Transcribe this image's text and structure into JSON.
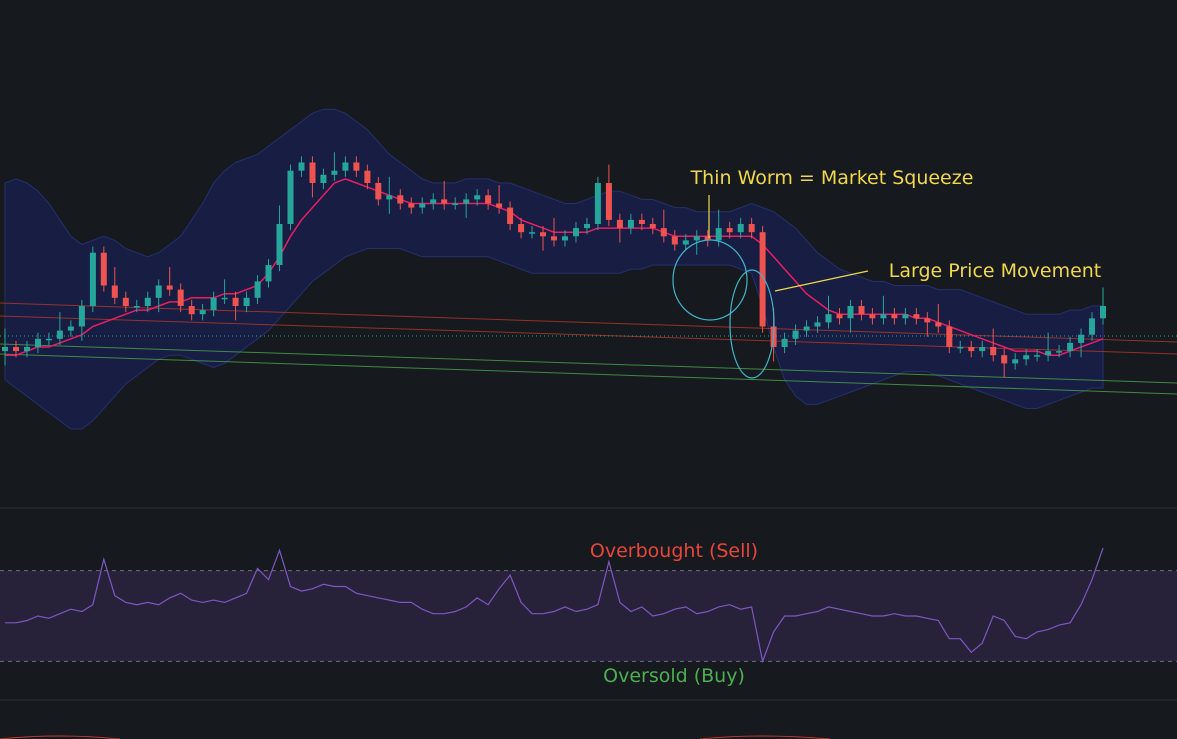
{
  "colors": {
    "background": "#161a1e",
    "bull": "#26a69a",
    "bear": "#ef5350",
    "ma": "#e91e63",
    "bollinger_fill": "#1b1f5c",
    "trend_upper": "#c0392b",
    "trend_lower": "#4caf50",
    "rsi_line": "#7e57c2",
    "rsi_band": "#2a2340",
    "annotation_text": "#f0d84a",
    "annotation_circle": "#3fb6c9",
    "overbought_text": "#e8453c",
    "oversold_text": "#4caf50",
    "separator": "#2c3038"
  },
  "annotations": {
    "squeeze": "Thin Worm = Market Squeeze",
    "movement": "Large Price Movement",
    "overbought": "Overbought (Sell)",
    "oversold": "Oversold (Buy)"
  },
  "chart_data": [
    {
      "type": "candlestick",
      "title": "",
      "overlays": [
        "bollinger-bands",
        "moving-average",
        "trend-lines"
      ],
      "grid": false,
      "ylim": [
        0,
        100
      ],
      "close": [
        70,
        69,
        70,
        72,
        72,
        74,
        75,
        80,
        93,
        85,
        82,
        80,
        80,
        82,
        85,
        84,
        80,
        78,
        79,
        82,
        82,
        80,
        82,
        86,
        90,
        100,
        113,
        115,
        110,
        112,
        113,
        115,
        113,
        110,
        106,
        107,
        105,
        104,
        105,
        106,
        105,
        105,
        106,
        107,
        105,
        104,
        100,
        98,
        98,
        97,
        96,
        97,
        99,
        100,
        110,
        101,
        99,
        101,
        100,
        99,
        97,
        95,
        96,
        97,
        96,
        99,
        98,
        100,
        98,
        75,
        70,
        72,
        74,
        75,
        76,
        78,
        77,
        80,
        78,
        77,
        78,
        77,
        78,
        77,
        76,
        75,
        70,
        70,
        69,
        70,
        68,
        66,
        67,
        68,
        68,
        69,
        69,
        71,
        73,
        77,
        80
      ],
      "ma": [
        68,
        68,
        69,
        70,
        70,
        71,
        72,
        73,
        75,
        76,
        77,
        78,
        79,
        79,
        80,
        81,
        81,
        82,
        82,
        82,
        83,
        83,
        84,
        85,
        88,
        92,
        97,
        101,
        104,
        107,
        110,
        111,
        110,
        109,
        108,
        107,
        106,
        105,
        105,
        105,
        105,
        105,
        105,
        105,
        105,
        104,
        103,
        101,
        100,
        99,
        98,
        98,
        98,
        98,
        99,
        99,
        99,
        99,
        99,
        99,
        98,
        97,
        97,
        97,
        97,
        97,
        97,
        97,
        97,
        95,
        92,
        89,
        86,
        83,
        81,
        79,
        78,
        78,
        78,
        78,
        78,
        78,
        78,
        77,
        77,
        76,
        75,
        74,
        73,
        72,
        71,
        70,
        69,
        69,
        69,
        68,
        68,
        69,
        70,
        71,
        72
      ],
      "bb_upper": [
        110,
        111,
        110,
        108,
        105,
        101,
        97,
        95,
        96,
        97,
        96,
        94,
        93,
        92,
        93,
        95,
        97,
        101,
        105,
        110,
        113,
        115,
        116,
        117,
        119,
        121,
        123,
        125,
        127,
        128,
        128,
        127,
        125,
        123,
        120,
        117,
        115,
        113,
        111,
        110,
        110,
        110,
        111,
        111,
        111,
        110,
        110,
        109,
        108,
        107,
        106,
        105,
        105,
        106,
        107,
        108,
        108,
        107,
        106,
        106,
        105,
        104,
        104,
        103,
        103,
        103,
        103,
        104,
        105,
        104,
        103,
        101,
        99,
        96,
        93,
        91,
        89,
        88,
        87,
        86,
        86,
        85,
        85,
        85,
        85,
        84,
        84,
        84,
        83,
        82,
        81,
        80,
        79,
        78,
        78,
        78,
        78,
        79,
        79,
        80,
        80
      ],
      "bb_lower": [
        62,
        60,
        58,
        56,
        54,
        52,
        50,
        50,
        52,
        55,
        58,
        61,
        63,
        65,
        67,
        68,
        68,
        67,
        66,
        65,
        66,
        68,
        70,
        72,
        74,
        77,
        80,
        83,
        86,
        88,
        90,
        92,
        93,
        94,
        94,
        94,
        94,
        93,
        92,
        92,
        92,
        92,
        92,
        92,
        92,
        91,
        90,
        89,
        88,
        88,
        88,
        88,
        88,
        88,
        88,
        88,
        88,
        89,
        89,
        90,
        90,
        90,
        90,
        90,
        90,
        90,
        90,
        89,
        88,
        80,
        70,
        62,
        58,
        56,
        56,
        57,
        58,
        59,
        60,
        61,
        62,
        63,
        64,
        64,
        64,
        63,
        62,
        61,
        60,
        59,
        58,
        57,
        56,
        55,
        55,
        56,
        57,
        58,
        59,
        60,
        60
      ]
    },
    {
      "type": "line",
      "title": "",
      "grid": false,
      "ylim": [
        20,
        80
      ],
      "bands": [
        30,
        70
      ],
      "values": [
        47,
        47,
        48,
        50,
        49,
        51,
        53,
        52,
        55,
        75,
        59,
        56,
        55,
        56,
        55,
        58,
        60,
        57,
        56,
        57,
        56,
        58,
        60,
        71,
        66,
        79,
        63,
        61,
        62,
        64,
        63,
        63,
        60,
        59,
        58,
        57,
        56,
        56,
        53,
        51,
        51,
        52,
        54,
        58,
        55,
        62,
        68,
        56,
        51,
        51,
        52,
        54,
        52,
        53,
        55,
        74,
        56,
        52,
        54,
        50,
        51,
        53,
        54,
        51,
        52,
        54,
        55,
        53,
        54,
        30,
        43,
        50,
        50,
        51,
        52,
        54,
        53,
        52,
        51,
        50,
        50,
        51,
        50,
        50,
        49,
        48,
        40,
        40,
        34,
        38,
        50,
        48,
        41,
        40,
        43,
        44,
        46,
        47,
        55,
        66,
        80
      ]
    }
  ]
}
